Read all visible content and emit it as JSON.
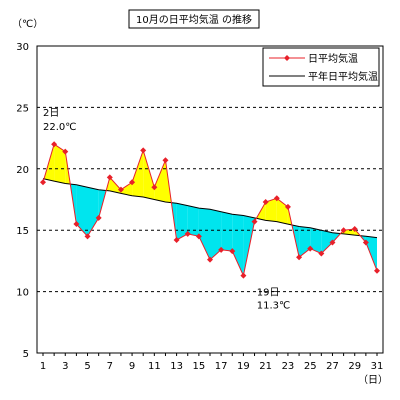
{
  "chart_data": {
    "type": "line",
    "title": "10月の日平均気温 の推移",
    "ylabel": "（℃）",
    "xlabel": "（日）",
    "ylim": [
      5,
      30
    ],
    "y_ticks": [
      5,
      10,
      15,
      20,
      25,
      30
    ],
    "x_ticks": [
      1,
      3,
      5,
      7,
      9,
      11,
      13,
      15,
      17,
      19,
      21,
      23,
      25,
      27,
      29,
      31
    ],
    "grid": "horizontal-dashed",
    "legend_position": "top-right",
    "x": [
      1,
      2,
      3,
      4,
      5,
      6,
      7,
      8,
      9,
      10,
      11,
      12,
      13,
      14,
      15,
      16,
      17,
      18,
      19,
      20,
      21,
      22,
      23,
      24,
      25,
      26,
      27,
      28,
      29,
      30,
      31
    ],
    "series": [
      {
        "name": "日平均気温",
        "color": "#e8202a",
        "values": [
          18.9,
          22.0,
          21.4,
          15.5,
          14.5,
          16.0,
          19.3,
          18.3,
          18.9,
          21.5,
          18.5,
          20.7,
          14.2,
          14.7,
          14.5,
          12.6,
          13.4,
          13.3,
          11.3,
          15.7,
          17.3,
          17.6,
          16.9,
          12.8,
          13.5,
          13.1,
          14.0,
          15.0,
          15.1,
          14.0,
          11.7
        ]
      },
      {
        "name": "平年日平均気温",
        "color": "#000000",
        "values": [
          19.2,
          19.0,
          18.8,
          18.7,
          18.5,
          18.3,
          18.2,
          18.0,
          17.8,
          17.7,
          17.5,
          17.3,
          17.2,
          17.0,
          16.8,
          16.7,
          16.5,
          16.3,
          16.2,
          16.0,
          15.8,
          15.7,
          15.5,
          15.3,
          15.2,
          15.0,
          14.8,
          14.7,
          14.6,
          14.5,
          14.4
        ]
      }
    ],
    "fill_above_color": "#ffff00",
    "fill_below_color": "#00e5ee",
    "annotations": [
      {
        "day": 2,
        "value": 22.0,
        "day_label": "2日",
        "value_label": "22.0℃"
      },
      {
        "day": 19,
        "value": 11.3,
        "day_label": "19日",
        "value_label": "11.3℃"
      }
    ]
  }
}
